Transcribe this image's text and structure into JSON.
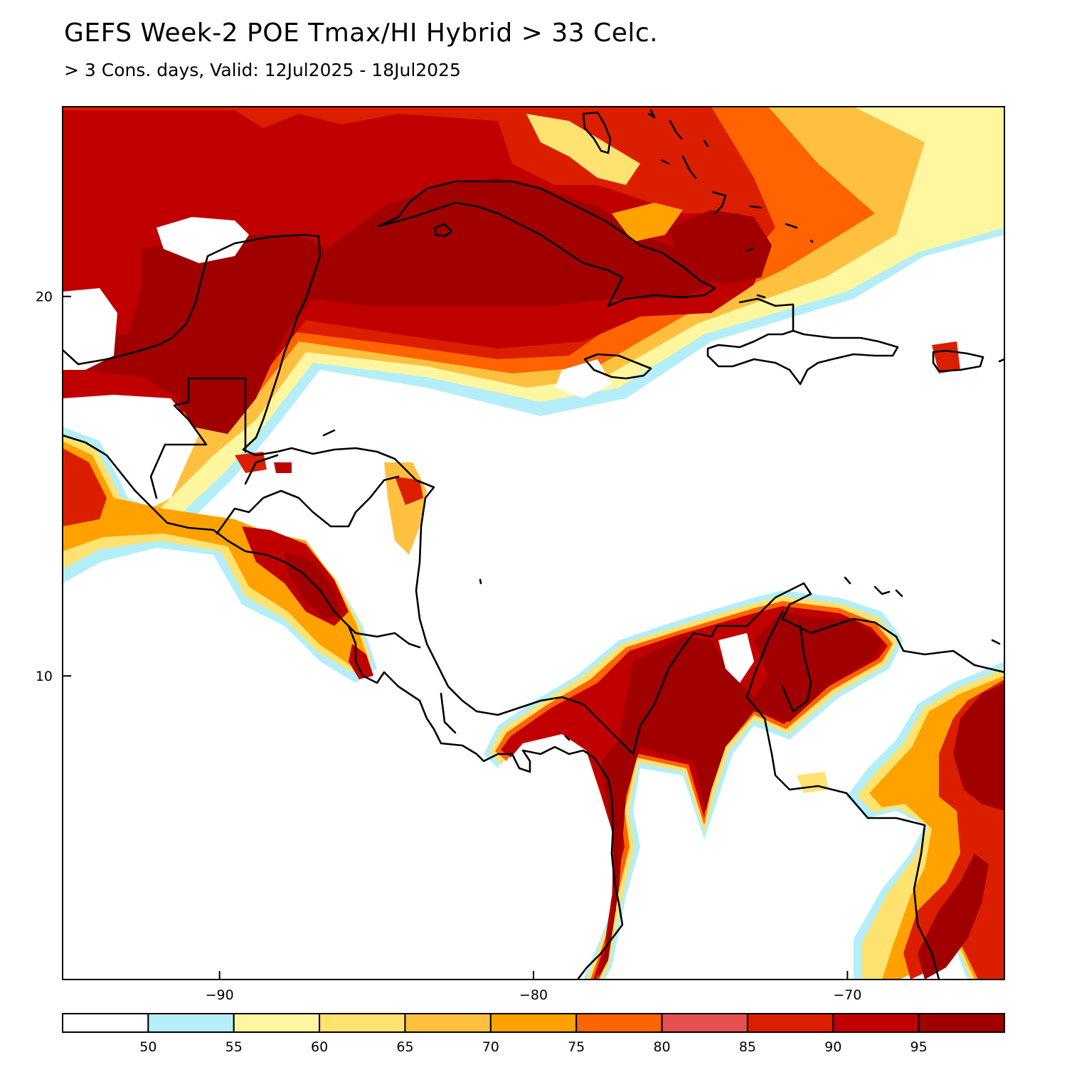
{
  "header": {
    "title": "GEFS Week-2 POE Tmax/HI Hybrid > 33 Celc.",
    "subtitle": "> 3 Cons. days, Valid: 12Jul2025 - 18Jul2025"
  },
  "map": {
    "lon_range": [
      -95,
      -65
    ],
    "lat_range": [
      2,
      25
    ],
    "x_ticks": [
      {
        "value": -90,
        "label": "−90"
      },
      {
        "value": -80,
        "label": "−80"
      },
      {
        "value": -70,
        "label": "−70"
      }
    ],
    "y_ticks": [
      {
        "value": 20,
        "label": "20"
      },
      {
        "value": 10,
        "label": "10"
      }
    ]
  },
  "colorbar": {
    "colors": [
      "#ffffff",
      "#b4eef8",
      "#fff6a0",
      "#ffe270",
      "#ffc040",
      "#ffa200",
      "#ff6400",
      "#e65050",
      "#dc1e00",
      "#c00000",
      "#a00000"
    ],
    "labels": [
      "50",
      "55",
      "60",
      "65",
      "70",
      "75",
      "80",
      "85",
      "90",
      "95"
    ]
  }
}
